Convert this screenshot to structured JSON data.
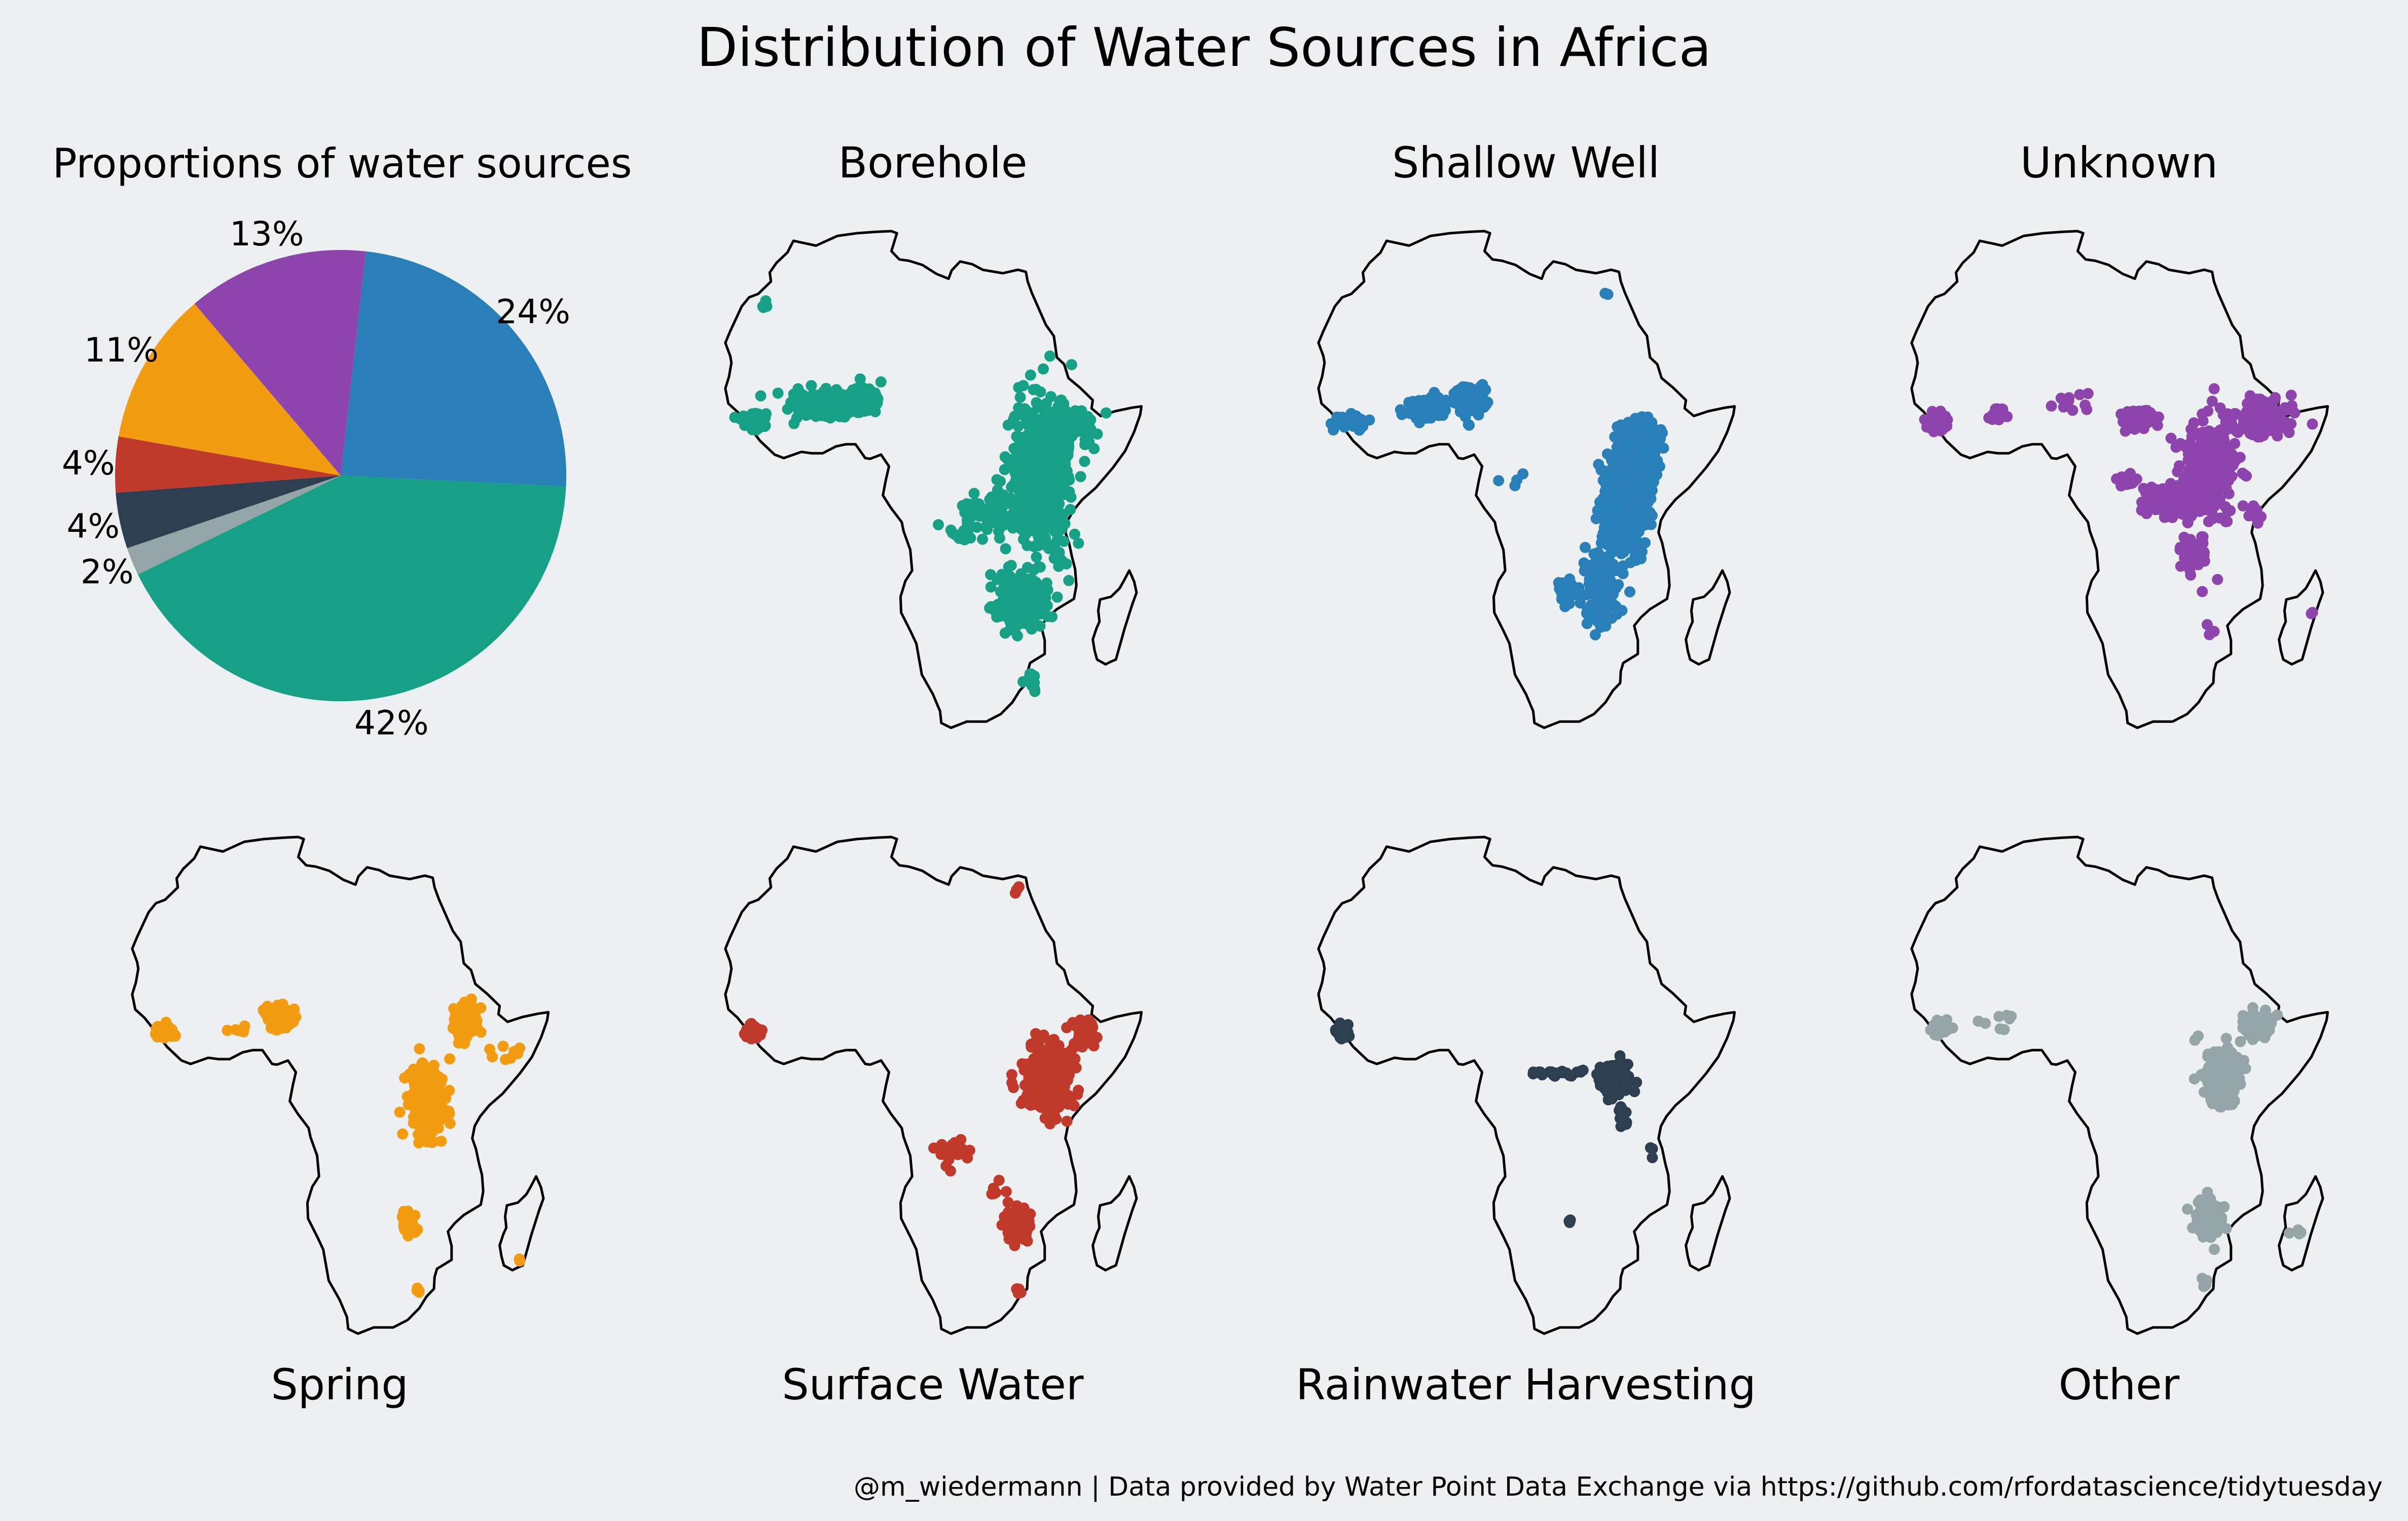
{
  "figure": {
    "title": "Distribution of Water Sources in Africa",
    "credit": "@m_wiedermann | Data provided by Water Point Data Exchange via https://github.com/rfordatascience/tidytuesday",
    "colors": {
      "background": "#ecf0f1",
      "outline": "#000000"
    }
  },
  "chart_data": [
    {
      "type": "pie",
      "title": "Proportions of water sources",
      "slices": [
        {
          "label": "Borehole",
          "value": 42,
          "label_text": "42%",
          "color": "#16a085"
        },
        {
          "label": "Shallow Well",
          "value": 24,
          "label_text": "24%",
          "color": "#2980b9"
        },
        {
          "label": "Unknown",
          "value": 13,
          "label_text": "13%",
          "color": "#8e44ad"
        },
        {
          "label": "Spring",
          "value": 11,
          "label_text": "11%",
          "color": "#f39c12"
        },
        {
          "label": "Surface Water",
          "value": 4,
          "label_text": "4%",
          "color": "#c0392b"
        },
        {
          "label": "Rainwater Harvesting",
          "value": 4,
          "label_text": "4%",
          "color": "#2c3e50"
        },
        {
          "label": "Other",
          "value": 2,
          "label_text": "2%",
          "color": "#95a5a6"
        }
      ]
    },
    {
      "type": "scatter",
      "title": "Borehole",
      "color": "#16a085",
      "clusters": [
        {
          "x": -0.5,
          "y": 12.0,
          "sx": 4.5,
          "sy": 1.5,
          "n": 260
        },
        {
          "x": -12.5,
          "y": 9.5,
          "sx": 1.6,
          "sy": 1.0,
          "n": 50
        },
        {
          "x": 5.5,
          "y": 13.0,
          "sx": 2.0,
          "sy": 1.4,
          "n": 160
        },
        {
          "x": 34.5,
          "y": 2.0,
          "sx": 4.0,
          "sy": 9.0,
          "n": 520
        },
        {
          "x": 39.0,
          "y": 9.5,
          "sx": 3.5,
          "sy": 2.5,
          "n": 90
        },
        {
          "x": 31.5,
          "y": -16.0,
          "sx": 3.5,
          "sy": 3.5,
          "n": 200
        },
        {
          "x": 26.0,
          "y": -3.5,
          "sx": 4.5,
          "sy": 2.5,
          "n": 50
        },
        {
          "x": 22.0,
          "y": -6.5,
          "sx": 3.0,
          "sy": 1.5,
          "n": 20
        },
        {
          "x": 33.0,
          "y": -28.0,
          "sx": 1.0,
          "sy": 1.2,
          "n": 14
        },
        {
          "x": -10.5,
          "y": 26.5,
          "sx": 0.7,
          "sy": 0.7,
          "n": 5
        },
        {
          "x": 35.0,
          "y": 10.0,
          "sx": 4.5,
          "sy": 4.5,
          "n": 25
        }
      ]
    },
    {
      "type": "scatter",
      "title": "Shallow Well",
      "color": "#2980b9",
      "clusters": [
        {
          "x": -12.0,
          "y": 9.5,
          "sx": 2.2,
          "sy": 1.0,
          "n": 60
        },
        {
          "x": 1.0,
          "y": 11.5,
          "sx": 2.5,
          "sy": 1.3,
          "n": 110
        },
        {
          "x": 8.0,
          "y": 13.0,
          "sx": 2.0,
          "sy": 1.6,
          "n": 170
        },
        {
          "x": 33.0,
          "y": -2.5,
          "sx": 2.5,
          "sy": 5.5,
          "n": 300
        },
        {
          "x": 36.0,
          "y": 6.5,
          "sx": 3.0,
          "sy": 3.0,
          "n": 140
        },
        {
          "x": 29.5,
          "y": -15.0,
          "sx": 2.5,
          "sy": 4.5,
          "n": 140
        },
        {
          "x": 24.0,
          "y": -15.0,
          "sx": 1.5,
          "sy": 1.2,
          "n": 40
        },
        {
          "x": 37.0,
          "y": -0.5,
          "sx": 1.5,
          "sy": 4.0,
          "n": 40
        },
        {
          "x": 30.0,
          "y": 28.5,
          "sx": 0.5,
          "sy": 0.5,
          "n": 2
        },
        {
          "x": 15.0,
          "y": 1.0,
          "sx": 2.0,
          "sy": 2.0,
          "n": 4
        }
      ]
    },
    {
      "type": "scatter",
      "title": "Unknown",
      "color": "#8e44ad",
      "clusters": [
        {
          "x": -13.0,
          "y": 9.5,
          "sx": 1.5,
          "sy": 1.0,
          "n": 80
        },
        {
          "x": -3.0,
          "y": 10.5,
          "sx": 1.2,
          "sy": 1.0,
          "n": 20
        },
        {
          "x": 20.0,
          "y": 10.0,
          "sx": 2.0,
          "sy": 1.2,
          "n": 80
        },
        {
          "x": 32.0,
          "y": 3.0,
          "sx": 3.5,
          "sy": 5.0,
          "n": 340
        },
        {
          "x": 40.5,
          "y": 10.0,
          "sx": 3.5,
          "sy": 2.0,
          "n": 170
        },
        {
          "x": 26.0,
          "y": -2.0,
          "sx": 4.0,
          "sy": 2.5,
          "n": 90
        },
        {
          "x": 29.5,
          "y": -10.0,
          "sx": 1.8,
          "sy": 3.0,
          "n": 50
        },
        {
          "x": 18.0,
          "y": 1.0,
          "sx": 1.6,
          "sy": 0.6,
          "n": 25
        },
        {
          "x": 32.0,
          "y": -20.5,
          "sx": 0.4,
          "sy": 0.6,
          "n": 4
        },
        {
          "x": 49.0,
          "y": -18.0,
          "sx": 0.6,
          "sy": 0.6,
          "n": 2
        },
        {
          "x": 40.0,
          "y": -4.0,
          "sx": 1.5,
          "sy": 2.0,
          "n": 8
        },
        {
          "x": 10.0,
          "y": 12.0,
          "sx": 3.0,
          "sy": 1.5,
          "n": 10
        }
      ]
    },
    {
      "type": "scatter",
      "title": "Spring",
      "color": "#f39c12",
      "clusters": [
        {
          "x": -11.5,
          "y": 9.0,
          "sx": 1.4,
          "sy": 0.9,
          "n": 45
        },
        {
          "x": 7.0,
          "y": 11.0,
          "sx": 1.8,
          "sy": 1.3,
          "n": 140
        },
        {
          "x": 37.5,
          "y": 10.5,
          "sx": 1.6,
          "sy": 2.2,
          "n": 110
        },
        {
          "x": 31.5,
          "y": -1.5,
          "sx": 2.5,
          "sy": 4.5,
          "n": 220
        },
        {
          "x": 28.5,
          "y": -19.0,
          "sx": 1.0,
          "sy": 1.5,
          "n": 40
        },
        {
          "x": 30.0,
          "y": -28.5,
          "sx": 0.5,
          "sy": 0.5,
          "n": 6
        },
        {
          "x": 44.0,
          "y": 6.0,
          "sx": 2.5,
          "sy": 1.5,
          "n": 8
        },
        {
          "x": 46.5,
          "y": -24.0,
          "sx": 0.4,
          "sy": 0.4,
          "n": 2
        },
        {
          "x": 0.0,
          "y": 9.5,
          "sx": 1.5,
          "sy": 0.8,
          "n": 6
        }
      ]
    },
    {
      "type": "scatter",
      "title": "Surface Water",
      "color": "#c0392b",
      "clusters": [
        {
          "x": -12.5,
          "y": 9.0,
          "sx": 1.0,
          "sy": 0.8,
          "n": 40
        },
        {
          "x": 36.0,
          "y": 2.5,
          "sx": 3.2,
          "sy": 4.2,
          "n": 360
        },
        {
          "x": 42.0,
          "y": 8.5,
          "sx": 1.5,
          "sy": 1.8,
          "n": 50
        },
        {
          "x": 31.0,
          "y": -19.0,
          "sx": 1.5,
          "sy": 1.8,
          "n": 110
        },
        {
          "x": 20.5,
          "y": -8.0,
          "sx": 2.5,
          "sy": 1.5,
          "n": 18
        },
        {
          "x": 31.0,
          "y": -28.5,
          "sx": 0.5,
          "sy": 0.5,
          "n": 8
        },
        {
          "x": 31.0,
          "y": 30.0,
          "sx": 0.4,
          "sy": 1.2,
          "n": 4
        },
        {
          "x": 27.5,
          "y": -14.0,
          "sx": 1.0,
          "sy": 1.0,
          "n": 6
        }
      ]
    },
    {
      "type": "scatter",
      "title": "Rainwater Harvesting",
      "color": "#2c3e50",
      "clusters": [
        {
          "x": -13.0,
          "y": 9.0,
          "sx": 1.0,
          "sy": 0.9,
          "n": 45
        },
        {
          "x": 31.5,
          "y": 2.0,
          "sx": 2.0,
          "sy": 1.6,
          "n": 170
        },
        {
          "x": 22.0,
          "y": 3.0,
          "sx": 3.5,
          "sy": 0.4,
          "n": 25
        },
        {
          "x": 33.0,
          "y": -3.5,
          "sx": 1.0,
          "sy": 1.5,
          "n": 12
        },
        {
          "x": 24.0,
          "y": -18.5,
          "sx": 0.4,
          "sy": 0.4,
          "n": 4
        },
        {
          "x": 38.0,
          "y": -9.0,
          "sx": 0.6,
          "sy": 1.0,
          "n": 3
        }
      ]
    },
    {
      "type": "scatter",
      "title": "Other",
      "color": "#95a5a6",
      "clusters": [
        {
          "x": -12.5,
          "y": 9.5,
          "sx": 1.2,
          "sy": 0.9,
          "n": 40
        },
        {
          "x": 34.0,
          "y": 2.5,
          "sx": 2.8,
          "sy": 4.0,
          "n": 170
        },
        {
          "x": 40.0,
          "y": 10.0,
          "sx": 2.5,
          "sy": 1.5,
          "n": 60
        },
        {
          "x": 31.5,
          "y": -18.0,
          "sx": 1.8,
          "sy": 2.2,
          "n": 120
        },
        {
          "x": -2.0,
          "y": 11.0,
          "sx": 3.0,
          "sy": 1.5,
          "n": 8
        },
        {
          "x": 46.0,
          "y": -20.0,
          "sx": 1.0,
          "sy": 1.0,
          "n": 4
        },
        {
          "x": 31.0,
          "y": -27.5,
          "sx": 0.6,
          "sy": 0.8,
          "n": 6
        }
      ]
    }
  ]
}
